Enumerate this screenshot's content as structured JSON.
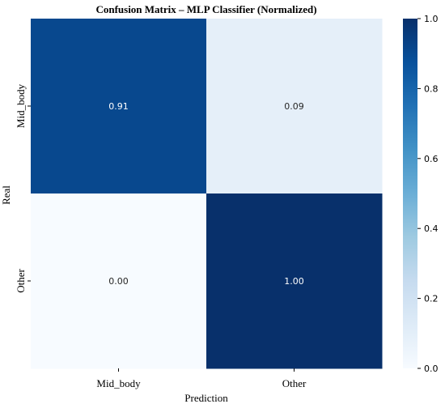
{
  "chart_data": {
    "type": "heatmap",
    "title": "Confusion Matrix – MLP Classifier (Normalized)",
    "xlabel": "Prediction",
    "ylabel": "Real",
    "x_categories": [
      "Mid_body",
      "Other"
    ],
    "y_categories": [
      "Mid_body",
      "Other"
    ],
    "values": [
      [
        0.91,
        0.09
      ],
      [
        0.0,
        1.0
      ]
    ],
    "cell_labels": [
      [
        "0.91",
        "0.09"
      ],
      [
        "0.00",
        "1.00"
      ]
    ],
    "colorbar": {
      "range": [
        0.0,
        1.0
      ],
      "ticks": [
        0.0,
        0.2,
        0.4,
        0.6,
        0.8,
        1.0
      ],
      "tick_labels": [
        "0.0",
        "0.2",
        "0.4",
        "0.6",
        "0.8",
        "1.0"
      ],
      "colormap": "Blues"
    },
    "colors": {
      "cmap_low": "#f7fbff",
      "cmap_high": "#08306b"
    }
  }
}
